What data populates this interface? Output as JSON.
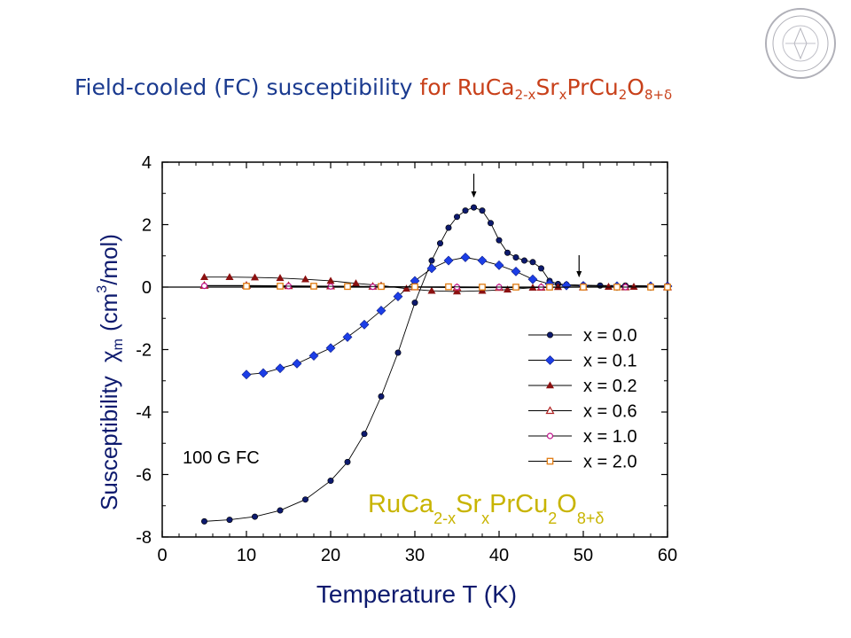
{
  "title": {
    "part1": "Field-cooled (FC) susceptibility",
    "part2": "for RuCa",
    "sub1": "2-x",
    "part3": "Sr",
    "sub2": "x",
    "part4": "PrCu",
    "sub3": "2",
    "part5": "O",
    "sub4": "8+δ"
  },
  "seal": {
    "label": "university seal",
    "text": "NATIONAL TSING HUA UNIVERSITY"
  },
  "chart_data": {
    "type": "scatter",
    "xlabel": "Temperature  T (K)",
    "ylabel": {
      "text": "Susceptibility",
      "symbol": "χ",
      "symbol_sub": "m",
      "unit_open": "(cm",
      "unit_sup": "3",
      "unit_close": "/mol)"
    },
    "xlim": [
      0,
      60
    ],
    "ylim": [
      -8,
      4
    ],
    "xticks": [
      0,
      10,
      20,
      30,
      40,
      50,
      60
    ],
    "yticks": [
      -8,
      -6,
      -4,
      -2,
      0,
      2,
      4
    ],
    "grid": false,
    "legend_position": "right",
    "annotation": "100 G FC",
    "formula": {
      "a": "RuCa",
      "a_sub": "2-x",
      "b": "Sr",
      "b_sub": "x",
      "c": "PrCu",
      "c_sub": "2",
      "d": "O",
      "d_sub": "8+δ"
    },
    "arrows_at_x": [
      37,
      49.5
    ],
    "series": [
      {
        "name": "x = 0.0",
        "marker": "circle-filled",
        "color": "#0d1a6e",
        "x": [
          5,
          8,
          11,
          14,
          17,
          20,
          22,
          24,
          26,
          28,
          30,
          32,
          33,
          34,
          35,
          36,
          37,
          38,
          39,
          40,
          41,
          42,
          43,
          44,
          45,
          46,
          47,
          48,
          50,
          52,
          55,
          58,
          60
        ],
        "y": [
          -7.5,
          -7.45,
          -7.35,
          -7.15,
          -6.8,
          -6.2,
          -5.6,
          -4.7,
          -3.5,
          -2.1,
          -0.5,
          0.85,
          1.4,
          1.9,
          2.25,
          2.45,
          2.55,
          2.45,
          2.05,
          1.5,
          1.1,
          0.95,
          0.85,
          0.8,
          0.6,
          0.2,
          0.1,
          0.08,
          0.06,
          0.05,
          0.05,
          0.04,
          0.04
        ]
      },
      {
        "name": "x = 0.1",
        "marker": "diamond-filled",
        "color": "#1c3ee6",
        "x": [
          10,
          12,
          14,
          16,
          18,
          20,
          22,
          24,
          26,
          28,
          30,
          32,
          34,
          36,
          38,
          40,
          42,
          44,
          46,
          48,
          50,
          54,
          58,
          60
        ],
        "y": [
          -2.8,
          -2.75,
          -2.6,
          -2.45,
          -2.2,
          -1.95,
          -1.6,
          -1.2,
          -0.75,
          -0.3,
          0.2,
          0.6,
          0.85,
          0.95,
          0.85,
          0.7,
          0.5,
          0.25,
          0.1,
          0.05,
          0.04,
          0.03,
          0.03,
          0.03
        ]
      },
      {
        "name": "x = 0.2",
        "marker": "triangle-filled",
        "color": "#8b1010",
        "x": [
          5,
          8,
          11,
          14,
          17,
          20,
          23,
          26,
          29,
          32,
          35,
          38,
          41,
          44,
          47,
          50,
          53,
          56,
          60
        ],
        "y": [
          0.32,
          0.32,
          0.31,
          0.29,
          0.25,
          0.2,
          0.12,
          0.05,
          -0.05,
          -0.12,
          -0.14,
          -0.12,
          -0.08,
          -0.02,
          0.0,
          0.01,
          0.01,
          0.01,
          0.01
        ]
      },
      {
        "name": "x = 0.6",
        "marker": "triangle-open",
        "color": "#b02020",
        "x": [
          5,
          10,
          15,
          20,
          25,
          30,
          35,
          40,
          45,
          50,
          55,
          60
        ],
        "y": [
          0.05,
          0.05,
          0.04,
          0.03,
          0.02,
          0.0,
          -0.02,
          -0.02,
          -0.01,
          0.0,
          0.0,
          0.0
        ]
      },
      {
        "name": "x = 1.0",
        "marker": "circle-open",
        "color": "#c0108a",
        "x": [
          5,
          10,
          15,
          20,
          25,
          30,
          35,
          40,
          45,
          50,
          55,
          60
        ],
        "y": [
          0.04,
          0.04,
          0.03,
          0.02,
          0.01,
          0.0,
          0.0,
          0.0,
          0.0,
          0.0,
          0.0,
          0.0
        ]
      },
      {
        "name": "x = 2.0",
        "marker": "square-open",
        "color": "#e07b10",
        "x": [
          10,
          14,
          18,
          22,
          26,
          30,
          34,
          38,
          42,
          46,
          50,
          54,
          58,
          60
        ],
        "y": [
          0.03,
          0.03,
          0.03,
          0.02,
          0.02,
          0.01,
          0.01,
          0.0,
          0.0,
          0.0,
          0.0,
          0.0,
          0.0,
          0.0
        ]
      }
    ]
  }
}
